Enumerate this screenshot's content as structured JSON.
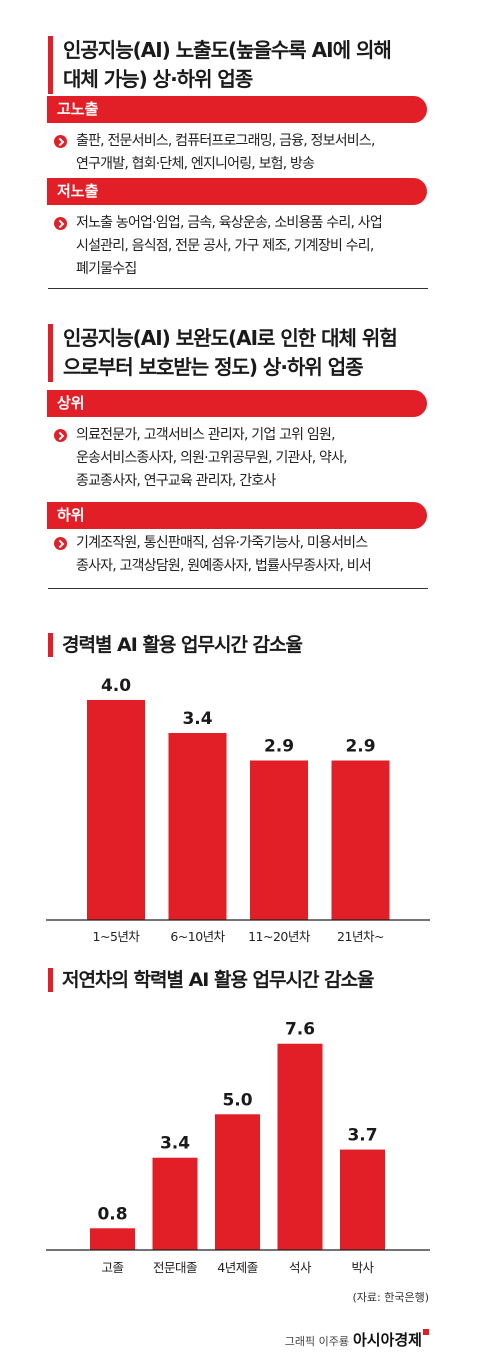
{
  "exposure": {
    "title_line1": "인공지능(AI) 노출도(높을수록 AI에 의해",
    "title_line2": "대체 가능) 상·하위 업종",
    "high_label": "고노출",
    "high_line1": "출판, 전문서비스, 컴퓨터프로그래밍, 금융, 정보서비스,",
    "high_line2": "연구개발, 협회·단체, 엔지니어링, 보험, 방송",
    "low_label": "저노출",
    "low_line1": "저노출 농어업·임업, 금속, 육상운송, 소비용품 수리, 사업",
    "low_line2": "시설관리, 음식점, 전문 공사, 가구 제조, 기계장비 수리,",
    "low_line3": "폐기물수집"
  },
  "complement": {
    "title_line1": "인공지능(AI) 보완도(AI로 인한 대체 위험",
    "title_line2": "으로부터 보호받는 정도) 상·하위 업종",
    "top_label": "상위",
    "top_line1": "의료전문가, 고객서비스 관리자, 기업 고위 임원,",
    "top_line2": "운송서비스종사자, 의원·고위공무원, 기관사, 약사,",
    "top_line3": "종교종사자, 연구교육 관리자, 간호사",
    "bottom_label": "하위",
    "bottom_line1": "기계조작원, 통신판매직, 섬유·가죽기능사, 미용서비스",
    "bottom_line2": "종사자, 고객상담원, 원예종사자, 법률사무종사자, 비서"
  },
  "chart_data": [
    {
      "type": "bar",
      "title": "경력별 AI 활용 업무시간 감소율",
      "categories": [
        "1~5년차",
        "6~10년차",
        "11~20년차",
        "21년차~"
      ],
      "values": [
        4.0,
        3.4,
        2.9,
        2.9
      ],
      "value_labels": [
        "4.0",
        "3.4",
        "2.9",
        "2.9"
      ],
      "xlabel": "",
      "ylabel": "",
      "ylim": [
        0,
        4.4
      ],
      "grid": false
    },
    {
      "type": "bar",
      "title": "저연차의 학력별 AI 활용 업무시간 감소율",
      "categories": [
        "고졸",
        "전문대졸",
        "4년제졸",
        "석사",
        "박사"
      ],
      "values": [
        0.8,
        3.4,
        5.0,
        7.6,
        3.7
      ],
      "value_labels": [
        "0.8",
        "3.4",
        "5.0",
        "7.6",
        "3.7"
      ],
      "xlabel": "",
      "ylabel": "",
      "ylim": [
        0,
        8.4
      ],
      "grid": false
    }
  ],
  "footer": {
    "source": "(자료: 한국은행)",
    "credit": "그래픽 이주룡",
    "brand": "아시아경제"
  },
  "colors": {
    "accent": "#e21f26"
  }
}
